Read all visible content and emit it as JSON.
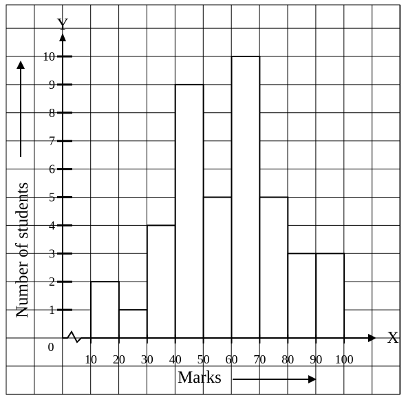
{
  "chart_data": {
    "type": "bar",
    "title": "",
    "xlabel": "Marks",
    "ylabel": "Number of students",
    "x_axis_letter": "X",
    "y_axis_letter": "Y",
    "origin_label": "0",
    "x_ticks": [
      "10",
      "20",
      "30",
      "40",
      "50",
      "60",
      "70",
      "80",
      "90",
      "100"
    ],
    "y_ticks": [
      "1",
      "2",
      "3",
      "4",
      "5",
      "6",
      "7",
      "8",
      "9",
      "10"
    ],
    "xlim": [
      10,
      100
    ],
    "ylim": [
      0,
      10
    ],
    "grid": true,
    "bins": [
      {
        "from": 10,
        "to": 20,
        "value": 2
      },
      {
        "from": 20,
        "to": 30,
        "value": 1
      },
      {
        "from": 30,
        "to": 40,
        "value": 4
      },
      {
        "from": 40,
        "to": 50,
        "value": 9
      },
      {
        "from": 50,
        "to": 60,
        "value": 5
      },
      {
        "from": 60,
        "to": 70,
        "value": 10
      },
      {
        "from": 70,
        "to": 80,
        "value": 5
      },
      {
        "from": 80,
        "to": 90,
        "value": 3
      },
      {
        "from": 90,
        "to": 100,
        "value": 3
      }
    ]
  }
}
